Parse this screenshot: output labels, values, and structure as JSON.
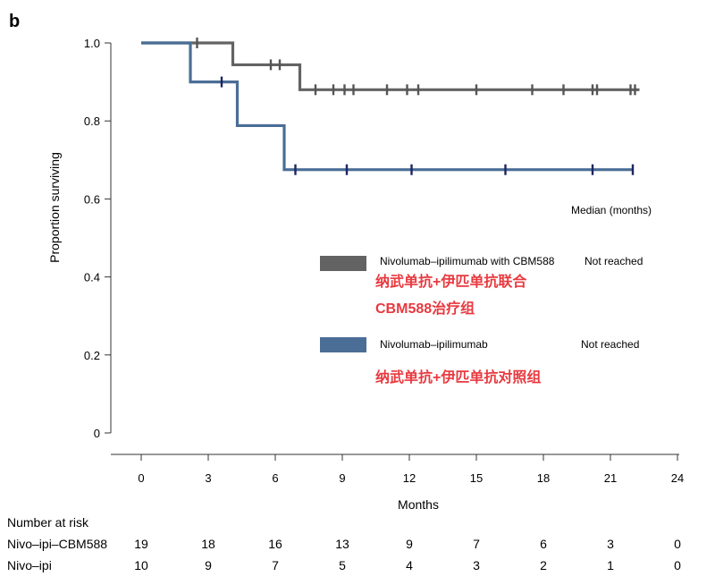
{
  "panel_label": "b",
  "colors": {
    "series1": "#636363",
    "series1_censor": "#555555",
    "series2": "#4a6e96",
    "series2_censor": "#1f2460",
    "annotation": "#e8393f",
    "axis": "#333333"
  },
  "chart_data": {
    "type": "line",
    "subtype": "kaplan-meier step",
    "xlabel": "Months",
    "ylabel": "Proportion surviving",
    "xlim": [
      0,
      24
    ],
    "ylim": [
      0,
      1.0
    ],
    "x_ticks": [
      "0",
      "3",
      "6",
      "9",
      "12",
      "15",
      "18",
      "21",
      "24"
    ],
    "y_ticks": [
      "0",
      "0.2",
      "0.4",
      "0.6",
      "0.8",
      "1.0"
    ],
    "grid": false,
    "series": [
      {
        "name": "Nivolumab–ipilimumab with CBM588",
        "median": "Not reached",
        "annotation": [
          "纳武单抗+伊匹单抗联合",
          "CBM588治疗组"
        ],
        "steps": [
          [
            0,
            1.0
          ],
          [
            4.1,
            0.944
          ],
          [
            7.1,
            0.88
          ],
          [
            22.3,
            0.88
          ]
        ],
        "censored": [
          [
            2.5,
            1.0
          ],
          [
            5.8,
            0.944
          ],
          [
            6.2,
            0.944
          ],
          [
            7.8,
            0.88
          ],
          [
            8.6,
            0.88
          ],
          [
            9.1,
            0.88
          ],
          [
            9.5,
            0.88
          ],
          [
            11.0,
            0.88
          ],
          [
            11.9,
            0.88
          ],
          [
            12.4,
            0.88
          ],
          [
            15.0,
            0.88
          ],
          [
            17.5,
            0.88
          ],
          [
            18.9,
            0.88
          ],
          [
            20.2,
            0.88
          ],
          [
            20.4,
            0.88
          ],
          [
            21.9,
            0.88
          ],
          [
            22.1,
            0.88
          ]
        ]
      },
      {
        "name": "Nivolumab–ipilimumab",
        "median": "Not reached",
        "annotation": [
          "纳武单抗+伊匹单抗对照组"
        ],
        "steps": [
          [
            0,
            1.0
          ],
          [
            2.2,
            0.9
          ],
          [
            4.3,
            0.788
          ],
          [
            6.4,
            0.675
          ],
          [
            22.0,
            0.675
          ]
        ],
        "censored": [
          [
            3.6,
            0.9
          ],
          [
            6.9,
            0.675
          ],
          [
            9.2,
            0.675
          ],
          [
            12.1,
            0.675
          ],
          [
            16.3,
            0.675
          ],
          [
            20.2,
            0.675
          ],
          [
            22.0,
            0.675
          ]
        ]
      }
    ],
    "legend": {
      "position": "center-right",
      "header": "Median (months)"
    },
    "risk_table": {
      "title": "Number at risk",
      "rows": [
        {
          "label": "Nivo–ipi–CBM588",
          "values": [
            "19",
            "18",
            "16",
            "13",
            "9",
            "7",
            "6",
            "3",
            "0"
          ]
        },
        {
          "label": "Nivo–ipi",
          "values": [
            "10",
            "9",
            "7",
            "5",
            "4",
            "3",
            "2",
            "1",
            "0"
          ]
        }
      ]
    }
  }
}
